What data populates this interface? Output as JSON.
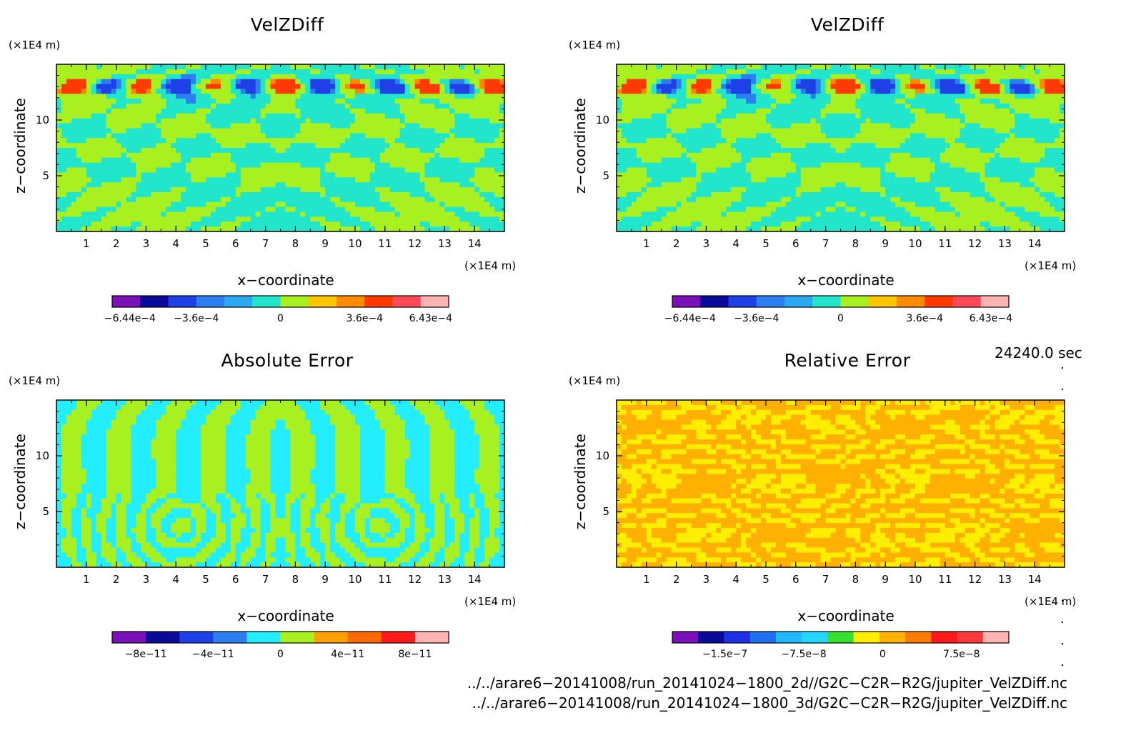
{
  "chart_data": [
    {
      "type": "heatmap",
      "title": "VelZDiff",
      "xlabel": "x−coordinate",
      "ylabel": "z−coordinate",
      "x_unit": "(×1E4 m)",
      "y_unit": "(×1E4 m)",
      "x_ticks": [
        "1",
        "2",
        "3",
        "4",
        "5",
        "6",
        "7",
        "8",
        "9",
        "10",
        "11",
        "12",
        "13",
        "14"
      ],
      "y_ticks": [
        "5",
        "10"
      ],
      "xlim": [
        0,
        15
      ],
      "ylim": [
        0,
        15
      ],
      "colorbar": {
        "colors": [
          "#7a10b8",
          "#0a0a9a",
          "#1e40e6",
          "#2c7ff0",
          "#2aa8f0",
          "#22e6cc",
          "#a8f020",
          "#ffc400",
          "#ff8a00",
          "#ff3a00",
          "#ff4a5a",
          "#ffb4b4"
        ],
        "tick_labels": [
          "−6.44e−4",
          "−3.6e−4",
          "0",
          "3.6e−4",
          "6.43e−4"
        ],
        "tick_positions": [
          -0.000644,
          -0.00036,
          0,
          0.00036,
          0.000643
        ],
        "range": [
          -0.00072,
          0.00072
        ]
      }
    },
    {
      "type": "heatmap",
      "title": "VelZDiff",
      "xlabel": "x−coordinate",
      "ylabel": "z−coordinate",
      "x_unit": "(×1E4 m)",
      "y_unit": "(×1E4 m)",
      "x_ticks": [
        "1",
        "2",
        "3",
        "4",
        "5",
        "6",
        "7",
        "8",
        "9",
        "10",
        "11",
        "12",
        "13",
        "14"
      ],
      "y_ticks": [
        "5",
        "10"
      ],
      "xlim": [
        0,
        15
      ],
      "ylim": [
        0,
        15
      ],
      "colorbar": {
        "colors": [
          "#7a10b8",
          "#0a0a9a",
          "#1e40e6",
          "#2c7ff0",
          "#2aa8f0",
          "#22e6cc",
          "#a8f020",
          "#ffc400",
          "#ff8a00",
          "#ff3a00",
          "#ff4a5a",
          "#ffb4b4"
        ],
        "tick_labels": [
          "−6.44e−4",
          "−3.6e−4",
          "0",
          "3.6e−4",
          "6.43e−4"
        ],
        "tick_positions": [
          -0.000644,
          -0.00036,
          0,
          0.00036,
          0.000643
        ],
        "range": [
          -0.00072,
          0.00072
        ]
      }
    },
    {
      "type": "heatmap",
      "title": "Absolute Error",
      "xlabel": "x−coordinate",
      "ylabel": "z−coordinate",
      "x_unit": "(×1E4 m)",
      "y_unit": "(×1E4 m)",
      "x_ticks": [
        "1",
        "2",
        "3",
        "4",
        "5",
        "6",
        "7",
        "8",
        "9",
        "10",
        "11",
        "12",
        "13",
        "14"
      ],
      "y_ticks": [
        "5",
        "10"
      ],
      "xlim": [
        0,
        15
      ],
      "ylim": [
        0,
        15
      ],
      "colorbar": {
        "colors": [
          "#7a10b8",
          "#0a0a9a",
          "#1e40e6",
          "#2c7ff0",
          "#22eeff",
          "#a8f020",
          "#ffa000",
          "#ff6a00",
          "#ff1a1a",
          "#ffb4b4"
        ],
        "tick_labels": [
          "−8e−11",
          "−4e−11",
          "0",
          "4e−11",
          "8e−11"
        ],
        "tick_positions": [
          -8e-11,
          -4e-11,
          0,
          4e-11,
          8e-11
        ],
        "range": [
          -1e-10,
          1e-10
        ]
      }
    },
    {
      "type": "heatmap",
      "title": "Relative Error",
      "xlabel": "x−coordinate",
      "ylabel": "z−coordinate",
      "x_unit": "(×1E4 m)",
      "y_unit": "(×1E4 m)",
      "x_ticks": [
        "1",
        "2",
        "3",
        "4",
        "5",
        "6",
        "7",
        "8",
        "9",
        "10",
        "11",
        "12",
        "13",
        "14"
      ],
      "y_ticks": [
        "5",
        "10"
      ],
      "xlim": [
        0,
        15
      ],
      "ylim": [
        0,
        15
      ],
      "colorbar": {
        "colors": [
          "#7a10b8",
          "#0a0a9a",
          "#1e30e6",
          "#1e70f0",
          "#22b8ff",
          "#22d8ff",
          "#36e030",
          "#ffee00",
          "#ffb000",
          "#ff7a00",
          "#ff1a1a",
          "#ff3a3a",
          "#ffb4b4"
        ],
        "tick_labels": [
          "−1.5e−7",
          "−7.5e−8",
          "0",
          "7.5e−8"
        ],
        "tick_positions": [
          -1.5e-07,
          -7.5e-08,
          0,
          7.5e-08
        ],
        "range": [
          -2e-07,
          1.2e-07
        ]
      }
    }
  ],
  "time_label": "24240.0 sec",
  "file_paths": [
    "../../arare6−20141008/run_20141024−1800_2d//G2C−C2R−R2G/jupiter_VelZDiff.nc",
    "../../arare6−20141008/run_20141024−1800_3d/G2C−C2R−R2G/jupiter_VelZDiff.nc"
  ]
}
